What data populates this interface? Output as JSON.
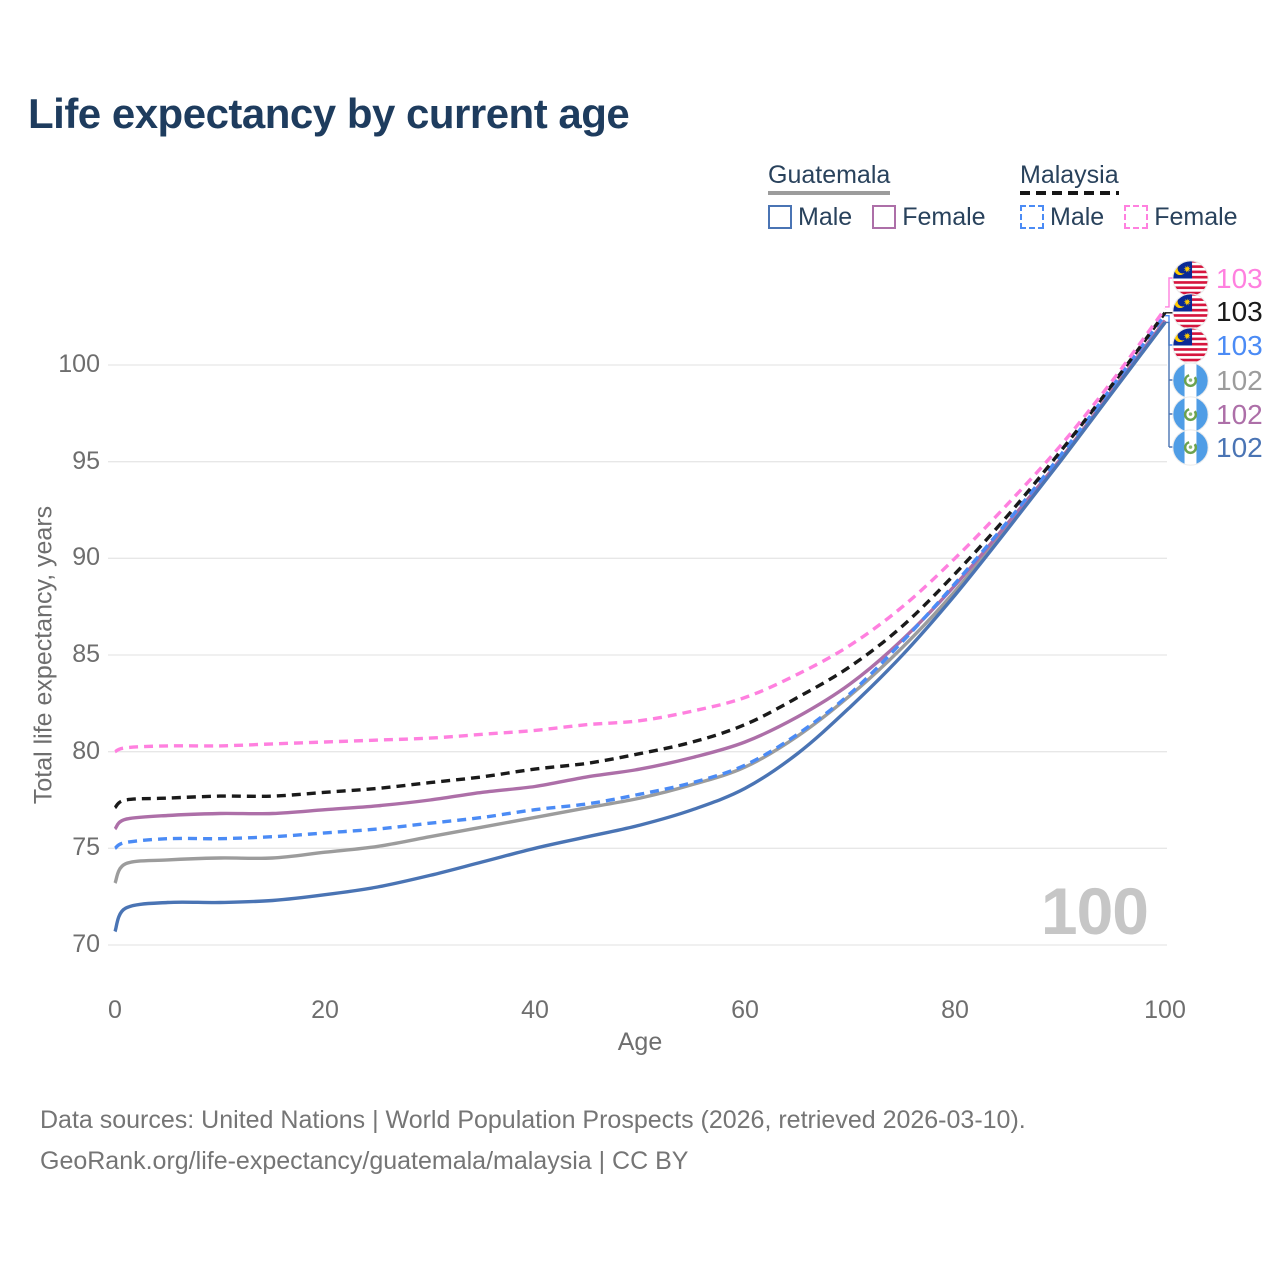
{
  "title": "Life expectancy by current age",
  "legend": {
    "countries": [
      {
        "name": "Guatemala",
        "line_style": "solid",
        "underline_color": "#9c9c9c"
      },
      {
        "name": "Malaysia",
        "line_style": "dashed",
        "underline_color": "#161616"
      }
    ],
    "items": [
      {
        "country": "Guatemala",
        "label": "Male",
        "color": "#4a74b4",
        "dashed": false
      },
      {
        "country": "Guatemala",
        "label": "Female",
        "color": "#ad6fa8",
        "dashed": false
      },
      {
        "country": "Malaysia",
        "label": "Male",
        "color": "#4b8bf5",
        "dashed": true
      },
      {
        "country": "Malaysia",
        "label": "Female",
        "color": "#ff80df",
        "dashed": true
      }
    ]
  },
  "chart_data": {
    "type": "line",
    "title": "Life expectancy by current age",
    "xlabel": "Age",
    "ylabel": "Total life expectancy, years",
    "xlim": [
      0,
      100
    ],
    "ylim": [
      70,
      100
    ],
    "x_ticks": [
      "0",
      "20",
      "40",
      "60",
      "80",
      "100"
    ],
    "y_ticks": [
      "70",
      "75",
      "80",
      "85",
      "90",
      "95",
      "100"
    ],
    "grid": "horizontal",
    "legend_position": "top-right",
    "x": [
      0,
      1,
      5,
      10,
      15,
      20,
      25,
      30,
      35,
      40,
      45,
      50,
      55,
      60,
      65,
      70,
      75,
      80,
      85,
      90,
      95,
      100
    ],
    "series": [
      {
        "name": "Guatemala Male",
        "color": "#4a74b4",
        "dash": false,
        "end_label": "102",
        "values": [
          70.7,
          71.9,
          72.2,
          72.2,
          72.3,
          72.6,
          73.0,
          73.6,
          74.3,
          75.0,
          75.6,
          76.2,
          77.0,
          78.1,
          79.9,
          82.3,
          85.0,
          88.1,
          91.5,
          95.0,
          98.6,
          102.2
        ]
      },
      {
        "name": "Guatemala Female",
        "color": "#ad6fa8",
        "dash": false,
        "end_label": "102",
        "values": [
          76.0,
          76.5,
          76.7,
          76.8,
          76.8,
          77.0,
          77.2,
          77.5,
          77.9,
          78.2,
          78.7,
          79.1,
          79.7,
          80.5,
          81.8,
          83.5,
          85.8,
          88.6,
          91.8,
          95.1,
          98.7,
          102.3
        ]
      },
      {
        "name": "Guatemala Both sexes",
        "color": "#9c9c9c",
        "dash": false,
        "end_label": "102",
        "values": [
          73.2,
          74.2,
          74.4,
          74.5,
          74.5,
          74.8,
          75.1,
          75.6,
          76.1,
          76.6,
          77.1,
          77.6,
          78.3,
          79.2,
          80.8,
          82.9,
          85.4,
          88.3,
          91.6,
          95.0,
          98.6,
          102.2
        ]
      },
      {
        "name": "Malaysia Male",
        "color": "#4b8bf5",
        "dash": true,
        "end_label": "103",
        "values": [
          75.0,
          75.3,
          75.5,
          75.5,
          75.6,
          75.8,
          76.0,
          76.3,
          76.6,
          77.0,
          77.3,
          77.8,
          78.4,
          79.3,
          80.9,
          83.0,
          85.7,
          88.7,
          91.9,
          95.3,
          98.9,
          102.6
        ]
      },
      {
        "name": "Malaysia Female",
        "color": "#ff80df",
        "dash": true,
        "end_label": "103",
        "values": [
          80.0,
          80.2,
          80.3,
          80.3,
          80.4,
          80.5,
          80.6,
          80.7,
          80.9,
          81.1,
          81.4,
          81.6,
          82.1,
          82.8,
          84.0,
          85.5,
          87.5,
          90.0,
          92.8,
          95.8,
          99.2,
          102.9
        ]
      },
      {
        "name": "Malaysia Both sexes",
        "color": "#1a1a1a",
        "dash": true,
        "end_label": "103",
        "values": [
          77.1,
          77.5,
          77.6,
          77.7,
          77.7,
          77.9,
          78.1,
          78.4,
          78.7,
          79.1,
          79.4,
          79.9,
          80.5,
          81.4,
          82.8,
          84.4,
          86.5,
          89.2,
          92.2,
          95.5,
          99.0,
          102.7
        ]
      }
    ]
  },
  "end_labels": [
    {
      "value": "103",
      "color": "#ff80df",
      "flag": "malaysia",
      "series": "Malaysia Female"
    },
    {
      "value": "103",
      "color": "#1a1a1a",
      "flag": "malaysia",
      "series": "Malaysia Both sexes"
    },
    {
      "value": "103",
      "color": "#4b8bf5",
      "flag": "malaysia",
      "series": "Malaysia Male"
    },
    {
      "value": "102",
      "color": "#9c9c9c",
      "flag": "guatemala",
      "series": "Guatemala Both sexes"
    },
    {
      "value": "102",
      "color": "#ad6fa8",
      "flag": "guatemala",
      "series": "Guatemala Female"
    },
    {
      "value": "102",
      "color": "#4a74b4",
      "flag": "guatemala",
      "series": "Guatemala Male"
    }
  ],
  "watermark": "100",
  "footer": {
    "line1": "Data sources: United Nations | World Population Prospects (2026, retrieved 2026-03-10).",
    "line2": "GeoRank.org/life-expectancy/guatemala/malaysia | CC BY"
  }
}
